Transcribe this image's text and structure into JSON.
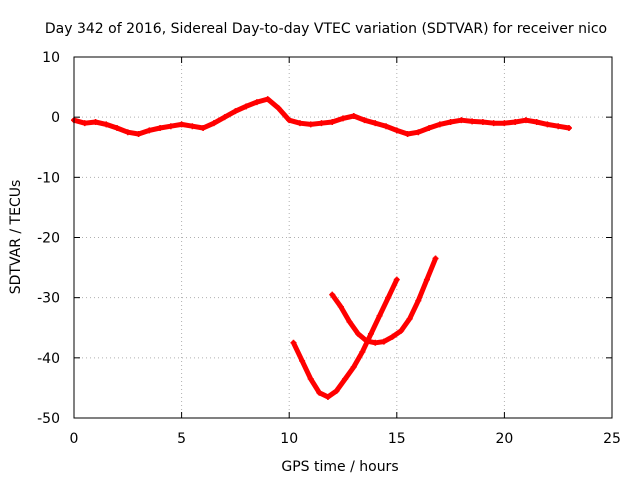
{
  "chart_data": {
    "type": "line",
    "title": "Day 342 of 2016, Sidereal Day-to-day VTEC variation (SDTVAR) for receiver nico",
    "xlabel": "GPS time / hours",
    "ylabel": "SDTVAR / TECUs",
    "xlim": [
      0,
      25
    ],
    "ylim": [
      -50,
      10
    ],
    "xticks": [
      0,
      5,
      10,
      15,
      20,
      25
    ],
    "yticks": [
      10,
      0,
      -10,
      -20,
      -30,
      -40,
      -50
    ],
    "grid": true,
    "legend": "none",
    "series": [
      {
        "color": "#ff0000",
        "x": [
          0.0,
          0.5,
          1.0,
          1.5,
          2.0,
          2.5,
          3.0,
          3.5,
          4.0,
          4.5,
          5.0,
          5.5,
          6.0,
          6.5,
          7.0,
          7.5,
          8.0,
          8.5,
          9.0,
          9.5,
          10.0,
          10.5,
          11.0,
          11.5,
          12.0,
          12.5,
          13.0,
          13.5,
          14.0,
          14.5,
          15.0,
          15.5,
          16.0,
          16.5,
          17.0,
          17.5,
          18.0,
          18.5,
          19.0,
          19.5,
          20.0,
          20.5,
          21.0,
          21.5,
          22.0,
          22.5,
          23.0
        ],
        "y": [
          -0.5,
          -1.0,
          -0.8,
          -1.2,
          -1.8,
          -2.5,
          -2.8,
          -2.2,
          -1.8,
          -1.5,
          -1.2,
          -1.5,
          -1.8,
          -1.0,
          0.0,
          1.0,
          1.8,
          2.5,
          3.0,
          1.5,
          -0.5,
          -1.0,
          -1.2,
          -1.0,
          -0.8,
          -0.2,
          0.2,
          -0.5,
          -1.0,
          -1.5,
          -2.2,
          -2.8,
          -2.5,
          -1.8,
          -1.2,
          -0.8,
          -0.5,
          -0.7,
          -0.8,
          -1.0,
          -1.0,
          -0.8,
          -0.5,
          -0.8,
          -1.2,
          -1.5,
          -1.8
        ]
      },
      {
        "color": "#ff0000",
        "x": [
          10.2,
          10.6,
          11.0,
          11.4,
          11.8,
          12.2,
          12.6,
          13.0,
          13.4,
          13.8,
          14.2,
          14.6,
          15.0
        ],
        "y": [
          -37.5,
          -40.5,
          -43.5,
          -45.8,
          -46.5,
          -45.5,
          -43.5,
          -41.5,
          -39.0,
          -36.0,
          -33.0,
          -30.0,
          -27.0
        ]
      },
      {
        "color": "#ff0000",
        "x": [
          12.0,
          12.4,
          12.8,
          13.2,
          13.6,
          14.0,
          14.4,
          14.8,
          15.2,
          15.6,
          16.0,
          16.4,
          16.8
        ],
        "y": [
          -29.5,
          -31.5,
          -34.0,
          -36.0,
          -37.2,
          -37.5,
          -37.3,
          -36.5,
          -35.5,
          -33.5,
          -30.5,
          -27.0,
          -23.5
        ]
      }
    ]
  }
}
